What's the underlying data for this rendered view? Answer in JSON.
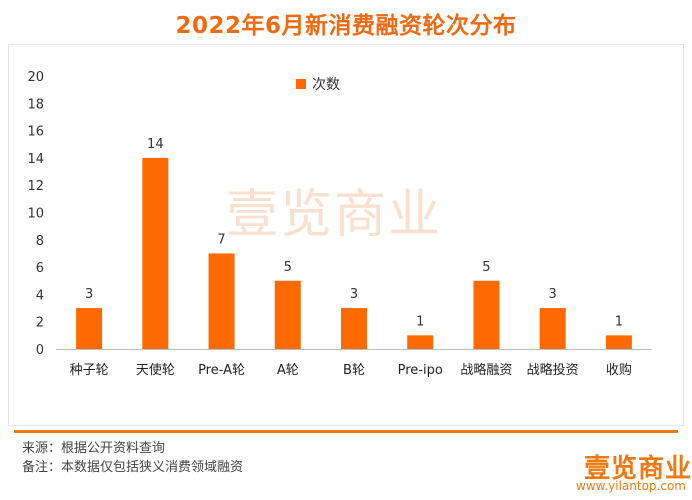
{
  "header": {
    "title": "2022年6月新消费融资轮次分布"
  },
  "chart_data": {
    "type": "bar",
    "title": "2022年6月新消费融资轮次分布",
    "categories": [
      "种子轮",
      "天使轮",
      "Pre-A轮",
      "A轮",
      "B轮",
      "Pre-ipo",
      "战略融资",
      "战略投资",
      "收购"
    ],
    "series": [
      {
        "name": "次数",
        "values": [
          3,
          14,
          7,
          5,
          3,
          1,
          5,
          3,
          1
        ],
        "color": "#ff6a00"
      }
    ],
    "ylim": [
      0,
      20
    ],
    "yticks": [
      0,
      2,
      4,
      6,
      8,
      10,
      12,
      14,
      16,
      18,
      20
    ],
    "xlabel": "",
    "ylabel": "",
    "grid": false,
    "legend": "top-center",
    "data_labels": true
  },
  "watermark": "壹览商业",
  "footer": {
    "source": "来源：根据公开资料查询",
    "note": "备注：本数据仅包括狭义消费领域融资",
    "logo": "壹览商业",
    "url": "www.yilantop.com"
  }
}
